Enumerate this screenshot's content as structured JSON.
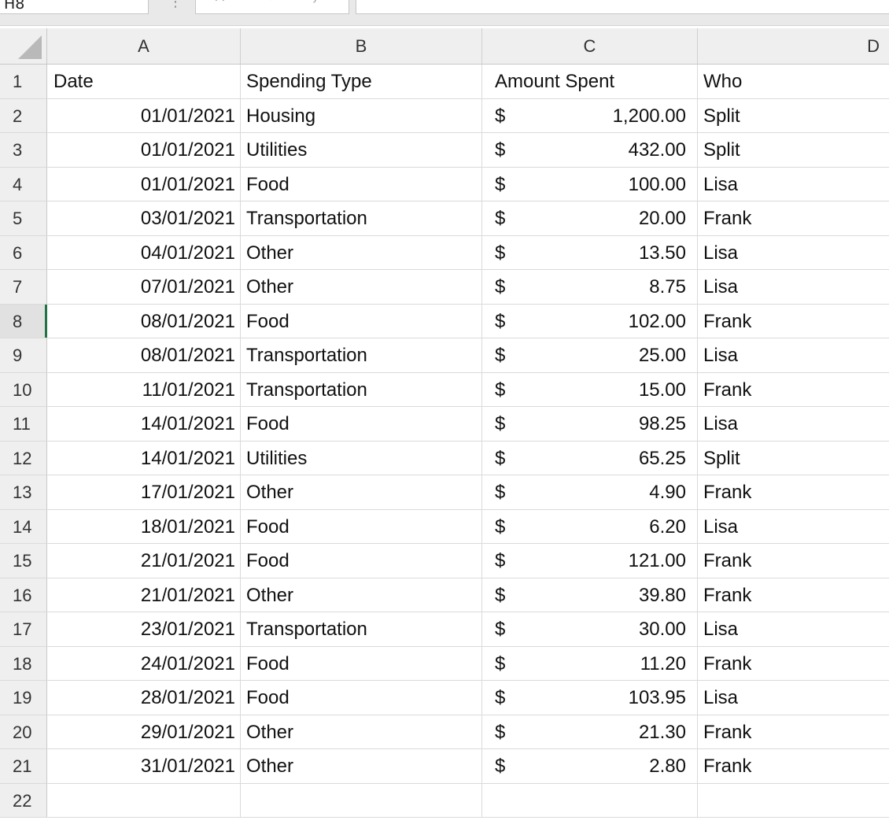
{
  "formula_bar": {
    "name_box": "H8",
    "cancel_icon": "×",
    "enter_icon": "✓",
    "fx_label": "fx",
    "formula": ""
  },
  "columns": [
    "A",
    "B",
    "C",
    "D"
  ],
  "header_row": {
    "row_number": "1",
    "date": "Date",
    "type": "Spending Type",
    "amount": "Amount Spent",
    "who": "Who"
  },
  "currency_symbol": "$",
  "rows": [
    {
      "n": "2",
      "date": "01/01/2021",
      "type": "Housing",
      "amount": "1,200.00",
      "who": "Split"
    },
    {
      "n": "3",
      "date": "01/01/2021",
      "type": "Utilities",
      "amount": "432.00",
      "who": "Split"
    },
    {
      "n": "4",
      "date": "01/01/2021",
      "type": "Food",
      "amount": "100.00",
      "who": "Lisa"
    },
    {
      "n": "5",
      "date": "03/01/2021",
      "type": "Transportation",
      "amount": "20.00",
      "who": "Frank"
    },
    {
      "n": "6",
      "date": "04/01/2021",
      "type": "Other",
      "amount": "13.50",
      "who": "Lisa"
    },
    {
      "n": "7",
      "date": "07/01/2021",
      "type": "Other",
      "amount": "8.75",
      "who": "Lisa"
    },
    {
      "n": "8",
      "date": "08/01/2021",
      "type": "Food",
      "amount": "102.00",
      "who": "Frank"
    },
    {
      "n": "9",
      "date": "08/01/2021",
      "type": "Transportation",
      "amount": "25.00",
      "who": "Lisa"
    },
    {
      "n": "10",
      "date": "11/01/2021",
      "type": "Transportation",
      "amount": "15.00",
      "who": "Frank"
    },
    {
      "n": "11",
      "date": "14/01/2021",
      "type": "Food",
      "amount": "98.25",
      "who": "Lisa"
    },
    {
      "n": "12",
      "date": "14/01/2021",
      "type": "Utilities",
      "amount": "65.25",
      "who": "Split"
    },
    {
      "n": "13",
      "date": "17/01/2021",
      "type": "Other",
      "amount": "4.90",
      "who": "Frank"
    },
    {
      "n": "14",
      "date": "18/01/2021",
      "type": "Food",
      "amount": "6.20",
      "who": "Lisa"
    },
    {
      "n": "15",
      "date": "21/01/2021",
      "type": "Food",
      "amount": "121.00",
      "who": "Frank"
    },
    {
      "n": "16",
      "date": "21/01/2021",
      "type": "Other",
      "amount": "39.80",
      "who": "Frank"
    },
    {
      "n": "17",
      "date": "23/01/2021",
      "type": "Transportation",
      "amount": "30.00",
      "who": "Lisa"
    },
    {
      "n": "18",
      "date": "24/01/2021",
      "type": "Food",
      "amount": "11.20",
      "who": "Frank"
    },
    {
      "n": "19",
      "date": "28/01/2021",
      "type": "Food",
      "amount": "103.95",
      "who": "Lisa"
    },
    {
      "n": "20",
      "date": "29/01/2021",
      "type": "Other",
      "amount": "21.30",
      "who": "Frank"
    },
    {
      "n": "21",
      "date": "31/01/2021",
      "type": "Other",
      "amount": "2.80",
      "who": "Frank"
    }
  ],
  "empty_rows": [
    "22"
  ],
  "selected_row": "8",
  "colors": {
    "selection_accent": "#217346",
    "header_bg": "#efefef",
    "gridline": "#dadada"
  }
}
